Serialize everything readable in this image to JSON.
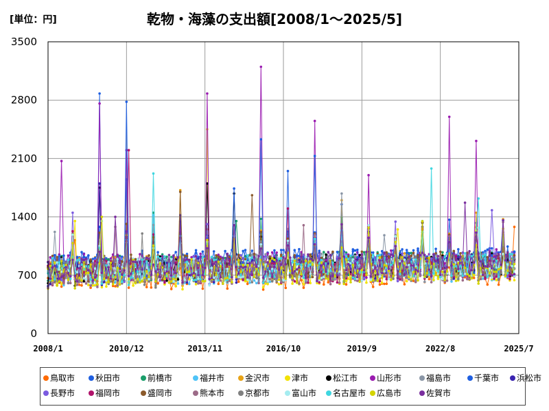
{
  "unit_label": "[単位：円]",
  "chart_data": {
    "type": "line",
    "title": "乾物・海藻の支出額[2008/1～2025/5]",
    "xlabel": "",
    "ylabel": "",
    "ylim": [
      0,
      3500
    ],
    "yticks": [
      0,
      700,
      1400,
      2100,
      2800,
      3500
    ],
    "xlim": [
      2008.0,
      2025.5
    ],
    "xticks": [
      {
        "label": "2008/1",
        "value": 2008.0
      },
      {
        "label": "2010/12",
        "value": 2010.917
      },
      {
        "label": "2013/11",
        "value": 2013.833
      },
      {
        "label": "2016/10",
        "value": 2016.75
      },
      {
        "label": "2019/9",
        "value": 2019.667
      },
      {
        "label": "2022/8",
        "value": 2022.583
      },
      {
        "label": "2025/7",
        "value": 2025.5
      }
    ],
    "grid": true,
    "legend_position": "bottom",
    "series": [
      {
        "name": "鳥取市",
        "color": "#ff6a00",
        "base": 660,
        "amp": 150,
        "peaks": [
          [
            2009.0,
            1120
          ],
          [
            2013.9,
            1250
          ],
          [
            2025.3,
            1280
          ]
        ]
      },
      {
        "name": "秋田市",
        "color": "#1f5fe0",
        "base": 800,
        "amp": 170,
        "peaks": [
          [
            2009.92,
            2880
          ],
          [
            2010.92,
            1850
          ],
          [
            2016.92,
            1950
          ],
          [
            2018.92,
            1550
          ]
        ]
      },
      {
        "name": "前橋市",
        "color": "#1a9e6a",
        "base": 780,
        "amp": 160,
        "peaks": [
          [
            2011.92,
            1450
          ],
          [
            2015.0,
            1350
          ]
        ]
      },
      {
        "name": "福井市",
        "color": "#4fc3f7",
        "base": 720,
        "amp": 150,
        "peaks": [
          [
            2011.92,
            1420
          ],
          [
            2021.92,
            1350
          ]
        ]
      },
      {
        "name": "金沢市",
        "color": "#e8a317",
        "base": 760,
        "amp": 160,
        "peaks": [
          [
            2012.92,
            1720
          ],
          [
            2018.92,
            1600
          ],
          [
            2023.92,
            1450
          ]
        ]
      },
      {
        "name": "津市",
        "color": "#f2e205",
        "base": 700,
        "amp": 150,
        "peaks": [
          [
            2009.0,
            1350
          ],
          [
            2013.92,
            2450
          ],
          [
            2021.0,
            1250
          ]
        ]
      },
      {
        "name": "松江市",
        "color": "#000000",
        "base": 760,
        "amp": 150,
        "peaks": [
          [
            2009.92,
            1750
          ],
          [
            2013.92,
            1800
          ],
          [
            2014.92,
            1680
          ],
          [
            2021.92,
            1330
          ]
        ]
      },
      {
        "name": "山形市",
        "color": "#9a1bb0",
        "base": 780,
        "amp": 170,
        "peaks": [
          [
            2008.5,
            2070
          ],
          [
            2009.92,
            2760
          ],
          [
            2010.92,
            2200
          ],
          [
            2013.92,
            2880
          ],
          [
            2015.92,
            3200
          ],
          [
            2017.92,
            2550
          ],
          [
            2019.92,
            1900
          ],
          [
            2022.92,
            2600
          ],
          [
            2023.92,
            2310
          ]
        ]
      },
      {
        "name": "福島市",
        "color": "#8a96a6",
        "base": 760,
        "amp": 160,
        "peaks": [
          [
            2008.25,
            1220
          ],
          [
            2018.92,
            1680
          ],
          [
            2020.5,
            1180
          ]
        ]
      },
      {
        "name": "千葉市",
        "color": "#1f5fe0",
        "base": 820,
        "amp": 160,
        "peaks": [
          [
            2010.92,
            2780
          ],
          [
            2015.92,
            2330
          ],
          [
            2017.92,
            2130
          ],
          [
            2014.92,
            1740
          ]
        ]
      },
      {
        "name": "浜松市",
        "color": "#3a24b0",
        "base": 740,
        "amp": 150,
        "peaks": [
          [
            2009.92,
            1800
          ],
          [
            2012.92,
            1420
          ]
        ]
      },
      {
        "name": "長野市",
        "color": "#7b5be0",
        "base": 760,
        "amp": 160,
        "peaks": [
          [
            2008.92,
            1450
          ],
          [
            2024.5,
            1480
          ]
        ]
      },
      {
        "name": "福岡市",
        "color": "#b0136a",
        "base": 720,
        "amp": 150,
        "peaks": [
          [
            2011.0,
            2200
          ],
          [
            2016.92,
            1500
          ]
        ]
      },
      {
        "name": "盛岡市",
        "color": "#8b5a2b",
        "base": 780,
        "amp": 160,
        "peaks": [
          [
            2012.92,
            1700
          ],
          [
            2015.6,
            1660
          ]
        ]
      },
      {
        "name": "熊本市",
        "color": "#9c6b88",
        "base": 700,
        "amp": 150,
        "peaks": [
          [
            2010.5,
            1280
          ],
          [
            2017.5,
            1300
          ]
        ]
      },
      {
        "name": "京都市",
        "color": "#808080",
        "base": 720,
        "amp": 150,
        "peaks": [
          [
            2011.5,
            1200
          ],
          [
            2020.9,
            1180
          ]
        ]
      },
      {
        "name": "富山市",
        "color": "#a5ecf0",
        "base": 740,
        "amp": 150,
        "peaks": [
          [
            2010.0,
            1350
          ],
          [
            2019.92,
            1300
          ],
          [
            2024.0,
            1270
          ]
        ]
      },
      {
        "name": "名古屋市",
        "color": "#3fd6e0",
        "base": 760,
        "amp": 150,
        "peaks": [
          [
            2011.92,
            1920
          ],
          [
            2022.25,
            1980
          ],
          [
            2024.0,
            1620
          ]
        ]
      },
      {
        "name": "広島市",
        "color": "#d4d400",
        "base": 720,
        "amp": 150,
        "peaks": [
          [
            2010.0,
            1400
          ],
          [
            2019.92,
            1270
          ]
        ]
      },
      {
        "name": "佐賀市",
        "color": "#7a2e9e",
        "base": 780,
        "amp": 160,
        "peaks": [
          [
            2010.5,
            1400
          ],
          [
            2014.92,
            1300
          ],
          [
            2023.5,
            1570
          ]
        ]
      }
    ]
  }
}
